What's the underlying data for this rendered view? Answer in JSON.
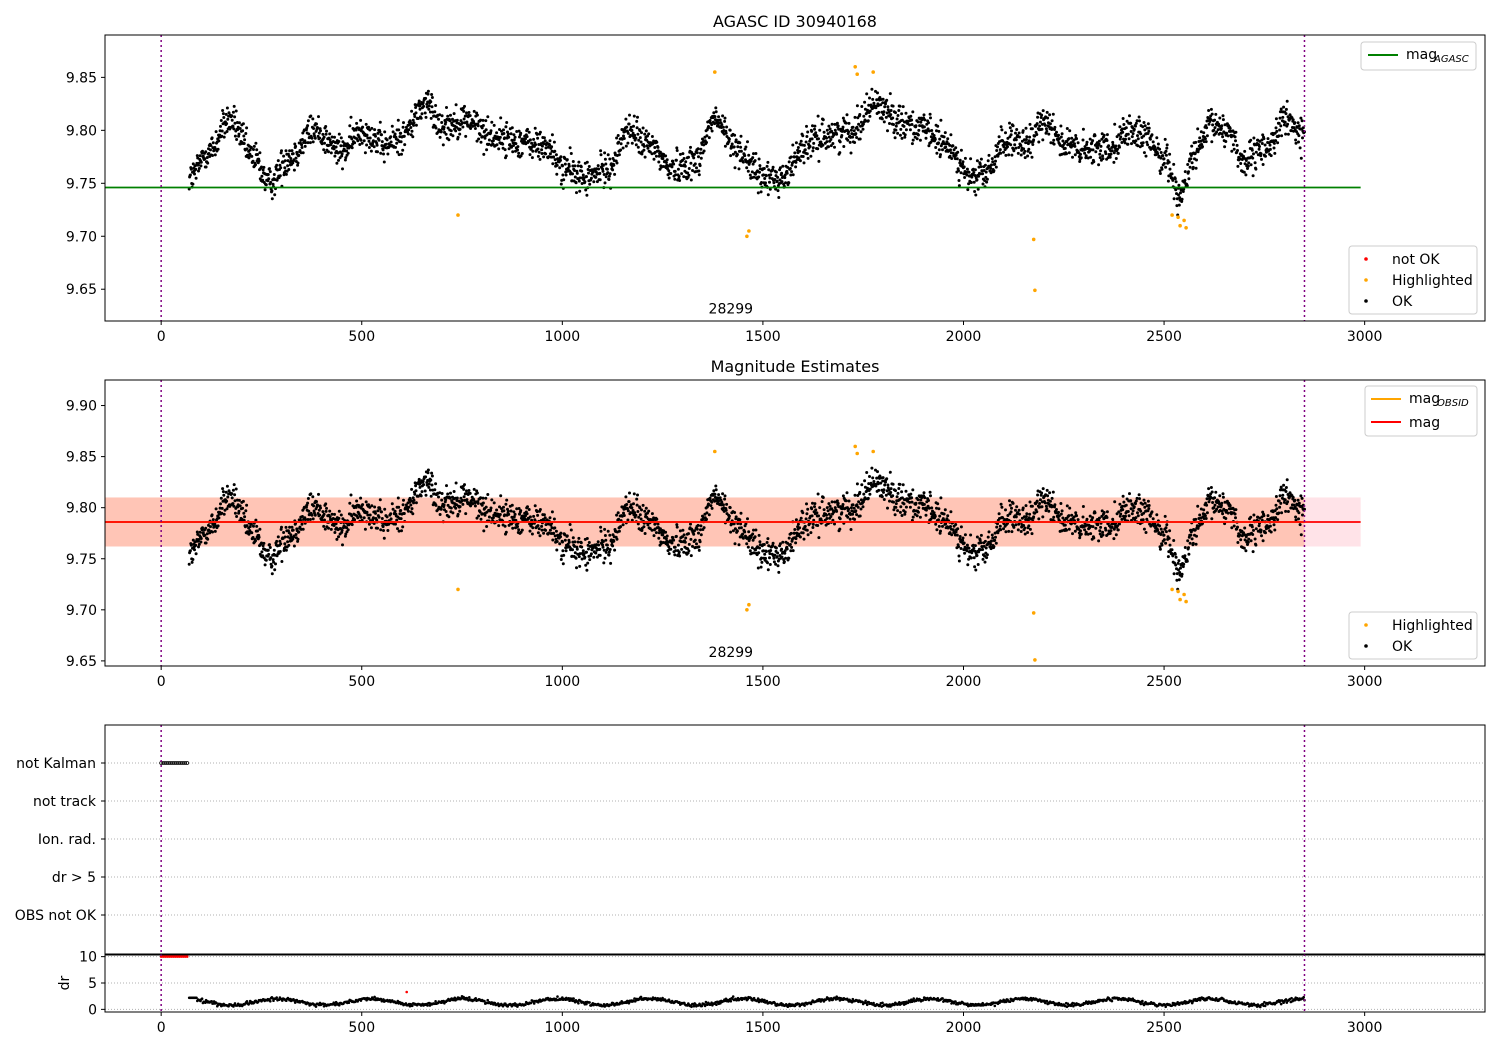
{
  "chart_data": [
    {
      "type": "scatter",
      "title": "AGASC ID 30940168",
      "xlim": [
        -140,
        3300
      ],
      "ylim": [
        9.62,
        9.89
      ],
      "xticks": [
        0,
        500,
        1000,
        1500,
        2000,
        2500,
        3000
      ],
      "yticks": [
        9.65,
        9.7,
        9.75,
        9.8,
        9.85
      ],
      "grid": false,
      "vlines": [
        0,
        2850
      ],
      "hline": {
        "name": "mag",
        "sub": "AGASC",
        "y": 9.746,
        "x_range": [
          -140,
          2990
        ],
        "color": "#008000"
      },
      "annotation": {
        "text": "28299",
        "x": 1420,
        "y": 9.627
      },
      "legend_lines": {
        "placement": "top-right",
        "entries": [
          {
            "name": "mag",
            "sub": "AGASC",
            "color": "#008000"
          }
        ]
      },
      "legend_points": {
        "placement": "bottom-right",
        "entries": [
          {
            "name": "not OK",
            "color": "#ff0000"
          },
          {
            "name": "Highlighted",
            "color": "#ffa500"
          },
          {
            "name": "OK",
            "color": "#000000"
          }
        ]
      },
      "series": [
        {
          "name": "OK",
          "color": "#000000",
          "x_range": [
            70,
            2850
          ],
          "n_points": 2780
        },
        {
          "name": "Highlighted",
          "color": "#ffa500",
          "x": [
            740,
            1380,
            1460,
            1465,
            1730,
            1735,
            1775,
            2175,
            2178,
            2520,
            2535,
            2540,
            2550,
            2555
          ],
          "values": [
            9.72,
            9.855,
            9.7,
            9.705,
            9.86,
            9.853,
            9.855,
            9.697,
            9.649,
            9.72,
            9.718,
            9.71,
            9.715,
            9.708
          ]
        },
        {
          "name": "not OK",
          "color": "#ff0000",
          "x": [],
          "values": []
        }
      ]
    },
    {
      "type": "scatter",
      "title": "Magnitude Estimates",
      "xlim": [
        -140,
        3300
      ],
      "ylim": [
        9.645,
        9.925
      ],
      "xticks": [
        0,
        500,
        1000,
        1500,
        2000,
        2500,
        3000
      ],
      "yticks": [
        9.65,
        9.7,
        9.75,
        9.8,
        9.85,
        9.9
      ],
      "grid": false,
      "vlines": [
        0,
        2850
      ],
      "bands": [
        {
          "x_range": [
            -140,
            2990
          ],
          "y_range": [
            9.762,
            9.81
          ],
          "color": "#ffc0cb"
        },
        {
          "x_range": [
            -140,
            2850
          ],
          "y_range": [
            9.762,
            9.81
          ],
          "color": "#ffa07a"
        }
      ],
      "lines": [
        {
          "name": "mag",
          "sub": "OBSID",
          "y": 9.786,
          "x_range": [
            -140,
            2850
          ],
          "color": "#ffa500"
        },
        {
          "name": "mag",
          "y": 9.786,
          "x_range": [
            -140,
            2990
          ],
          "color": "#ff0000"
        }
      ],
      "annotation": {
        "text": "28299",
        "x": 1420,
        "y": 9.654
      },
      "legend_lines": {
        "placement": "top-right",
        "entries": [
          {
            "name": "mag",
            "sub": "OBSID",
            "color": "#ffa500"
          },
          {
            "name": "mag",
            "color": "#ff0000"
          }
        ]
      },
      "legend_points": {
        "placement": "bottom-right",
        "entries": [
          {
            "name": "Highlighted",
            "color": "#ffa500"
          },
          {
            "name": "OK",
            "color": "#000000"
          }
        ]
      },
      "series": [
        {
          "name": "OK",
          "color": "#000000",
          "x_range": [
            70,
            2850
          ],
          "n_points": 2780
        },
        {
          "name": "Highlighted",
          "color": "#ffa500",
          "x": [
            740,
            1380,
            1460,
            1465,
            1730,
            1735,
            1775,
            2175,
            2178,
            2520,
            2535,
            2540,
            2550,
            2555
          ],
          "values": [
            9.72,
            9.855,
            9.7,
            9.705,
            9.86,
            9.853,
            9.855,
            9.697,
            9.651,
            9.72,
            9.718,
            9.71,
            9.715,
            9.708
          ]
        }
      ]
    },
    {
      "type": "scatter",
      "xlim": [
        -140,
        3300
      ],
      "categories": [
        "not Kalman",
        "not track",
        "Ion. rad.",
        "dr > 5",
        "OBS not OK"
      ],
      "grid": true,
      "vlines": [
        0,
        2850
      ],
      "flag_points": {
        "category": "not Kalman",
        "x_range": [
          0,
          65
        ],
        "n_points": 14,
        "color": "#000000"
      }
    },
    {
      "type": "line",
      "xlim": [
        -140,
        3300
      ],
      "ylim": [
        -0.5,
        10.5
      ],
      "ylabel": "dr",
      "xticks": [
        0,
        500,
        1000,
        1500,
        2000,
        2500,
        3000
      ],
      "yticks": [
        0,
        5,
        10
      ],
      "grid": true,
      "vlines": [
        0,
        2850
      ],
      "series": [
        {
          "name": "dr",
          "color": "#000000",
          "x_range": [
            70,
            2850
          ],
          "mean": 1.4
        },
        {
          "name": "dr not OK",
          "color": "#ff0000",
          "x": [
            0,
            5,
            10,
            15,
            20,
            25,
            30,
            35,
            40,
            45,
            50,
            55,
            60,
            65,
            612
          ],
          "values": [
            10,
            10,
            10,
            10,
            10,
            10,
            10,
            10,
            10,
            10,
            10,
            10,
            10,
            10,
            3.3
          ]
        }
      ]
    }
  ]
}
